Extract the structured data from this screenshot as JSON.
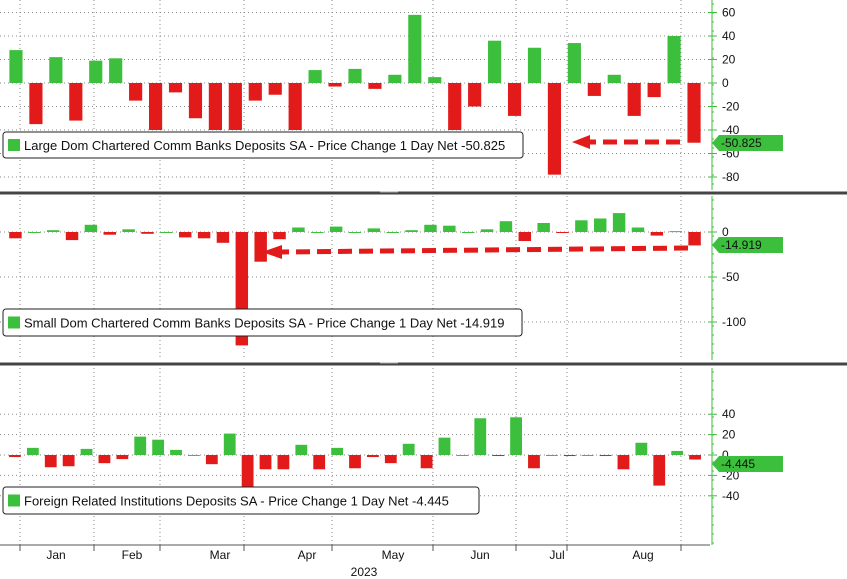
{
  "colors": {
    "up": "#3cbf3c",
    "down": "#e31a1a",
    "axis": "#3cbf3c",
    "arrow": "#e31a1a"
  },
  "x_axis": {
    "months": [
      "Jan",
      "Feb",
      "Mar",
      "Apr",
      "May",
      "Jun",
      "Jul",
      "Aug"
    ],
    "year": "2023"
  },
  "chart_data": [
    {
      "type": "bar",
      "legend": "Large Dom Chartered Comm Banks Deposits SA - Price Change 1 Day Net -50.825",
      "last_value_label": "-50.825",
      "ylim": [
        -90,
        68
      ],
      "yticks": [
        60,
        40,
        20,
        0,
        -20,
        -40,
        -60,
        -80
      ],
      "values": [
        28,
        -35,
        22,
        -32,
        19,
        21,
        -15,
        -40,
        -8,
        -30,
        -40,
        -40,
        -15,
        -10,
        -40,
        11,
        -3,
        12,
        -5,
        7,
        58,
        5,
        -40,
        -20,
        36,
        -28,
        30,
        -78,
        34,
        -11,
        7,
        -28,
        -12,
        40,
        -50.825
      ],
      "arrow": true
    },
    {
      "type": "bar",
      "legend": "Small Dom Chartered Comm Banks Deposits SA - Price Change 1 Day Net -14.919",
      "last_value_label": "-14.919",
      "ylim": [
        -138,
        30
      ],
      "yticks": [
        0,
        -50,
        -100
      ],
      "values": [
        -7,
        0,
        2,
        -9,
        8,
        -3,
        3,
        -2,
        0,
        -6,
        -7,
        -12,
        -126,
        -33,
        -8,
        5,
        0,
        6,
        0,
        4,
        0,
        2,
        8,
        7,
        0,
        3,
        12,
        -10,
        10,
        -1,
        13,
        15,
        21,
        5,
        -4,
        1,
        -14.919
      ],
      "arrow": true
    },
    {
      "type": "bar",
      "legend": "Foreign Related Institutions Deposits SA - Price Change 1 Day Net -4.445",
      "last_value_label": "-4.445",
      "ylim": [
        -43,
        42
      ],
      "yticks": [
        40,
        20,
        0,
        -20,
        -40
      ],
      "values": [
        -2,
        7,
        -12,
        -11,
        6,
        -8,
        -4,
        18,
        15,
        5,
        0,
        -9,
        21,
        -36,
        -14,
        -14,
        10,
        -14,
        7,
        -13,
        -2,
        -8,
        11,
        -13,
        17,
        0,
        36,
        -1,
        37,
        -13,
        0,
        -1,
        0,
        -1,
        -14,
        12,
        -30,
        4,
        -4.445
      ],
      "arrow": false
    }
  ]
}
